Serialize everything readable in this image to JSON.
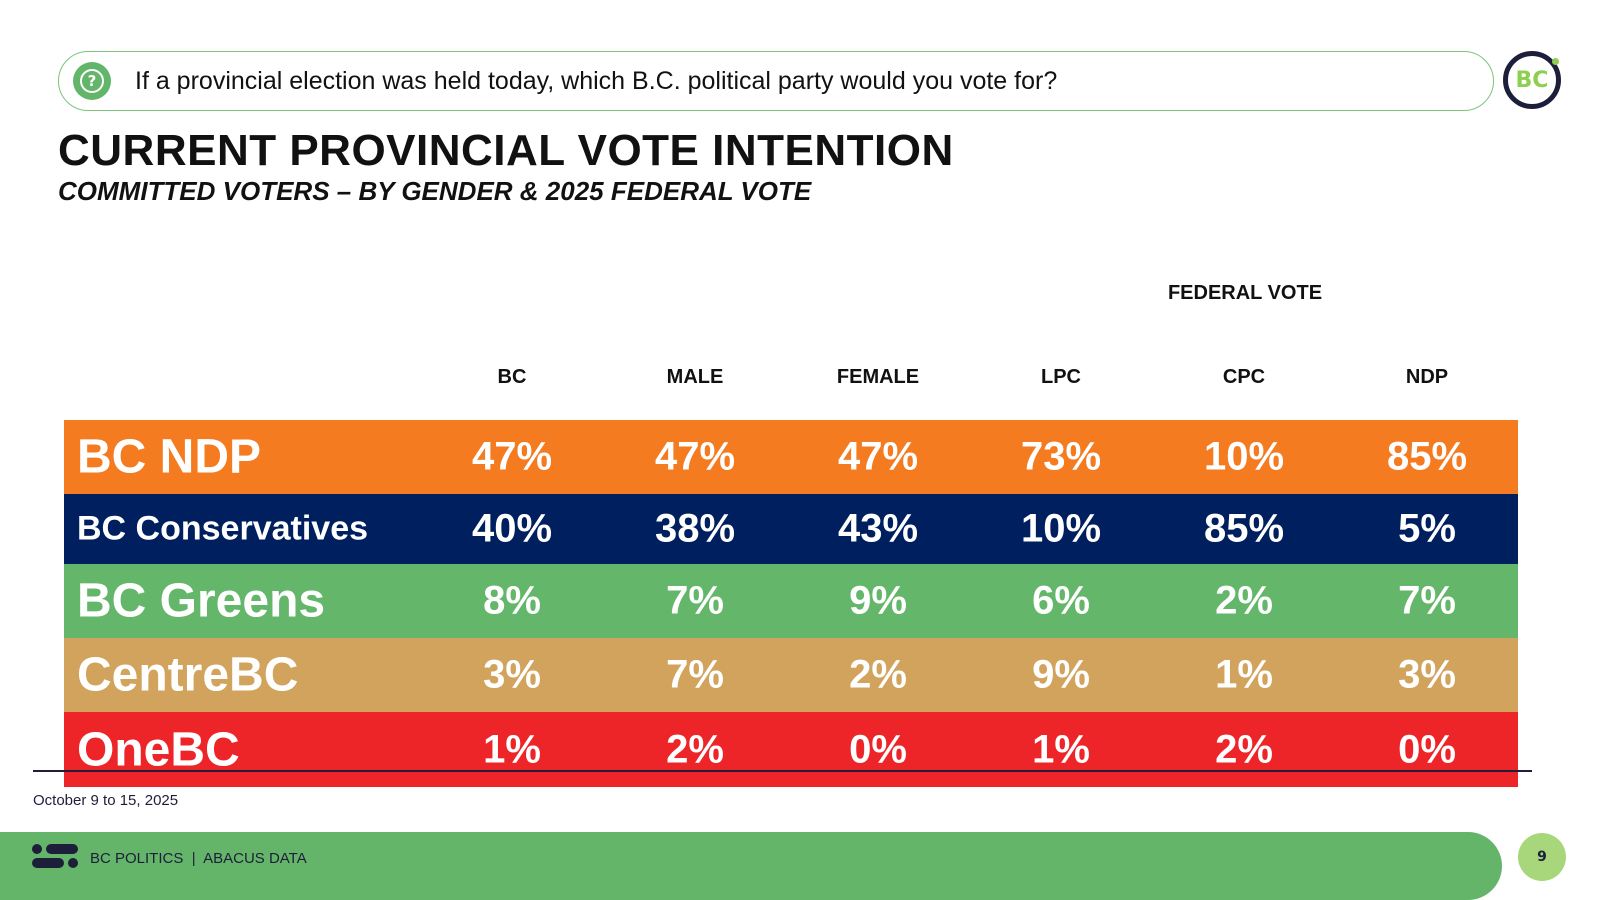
{
  "question": "If a provincial election was held today, which B.C. political party would you vote for?",
  "logo_text": "BC",
  "title": "CURRENT PROVINCIAL VOTE INTENTION",
  "subtitle": "COMMITTED VOTERS – BY GENDER & 2025 FEDERAL VOTE",
  "group_header": "FEDERAL VOTE",
  "columns": [
    "BC",
    "MALE",
    "FEMALE",
    "LPC",
    "CPC",
    "NDP"
  ],
  "rows": [
    {
      "party": "BC NDP",
      "color": "#f47b20",
      "values": [
        "47%",
        "47%",
        "47%",
        "73%",
        "10%",
        "85%"
      ]
    },
    {
      "party": "BC Conservatives",
      "color": "#001f5f",
      "values": [
        "40%",
        "38%",
        "43%",
        "10%",
        "85%",
        "5%"
      ]
    },
    {
      "party": "BC Greens",
      "color": "#64b76a",
      "values": [
        "8%",
        "7%",
        "9%",
        "6%",
        "2%",
        "7%"
      ]
    },
    {
      "party": "CentreBC",
      "color": "#d1a35c",
      "values": [
        "3%",
        "7%",
        "2%",
        "9%",
        "1%",
        "3%"
      ]
    },
    {
      "party": "OneBC",
      "color": "#ee2528",
      "values": [
        "1%",
        "2%",
        "0%",
        "1%",
        "2%",
        "0%"
      ]
    }
  ],
  "date": "October 9 to 15, 2025",
  "footer": "BC POLITICS  |  ABACUS DATA",
  "page_number": "9"
}
